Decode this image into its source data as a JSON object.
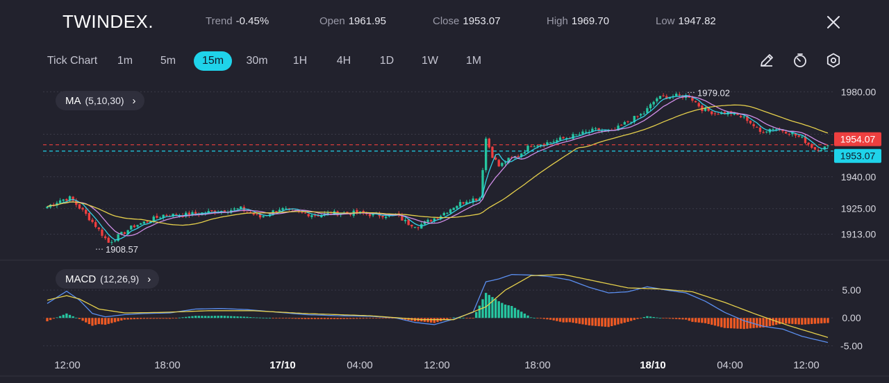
{
  "header": {
    "logo": "TWINDEX.",
    "stats": [
      {
        "label": "Trend",
        "value": "-0.45%"
      },
      {
        "label": "Open",
        "value": "1961.95"
      },
      {
        "label": "Close",
        "value": "1953.07"
      },
      {
        "label": "High",
        "value": "1969.70"
      },
      {
        "label": "Low",
        "value": "1947.82"
      }
    ],
    "close_icon": "close-icon"
  },
  "timeframes": {
    "items": [
      "Tick Chart",
      "1m",
      "5m",
      "15m",
      "30m",
      "1H",
      "4H",
      "1D",
      "1W",
      "1M"
    ],
    "active": "15m"
  },
  "tools": [
    "pencil-icon",
    "timer-icon",
    "settings-icon"
  ],
  "indicators": {
    "ma": {
      "label": "MA",
      "params": "(5,10,30)"
    },
    "macd": {
      "label": "MACD",
      "params": "(12,26,9)"
    }
  },
  "colors": {
    "up": "#26c6a0",
    "down": "#ee3f3f",
    "ma5": "#36d1e6",
    "ma10": "#d08ee8",
    "ma30": "#e6d04c",
    "macd_line": "#5b8ff0",
    "signal_line": "#e6d04c",
    "hist_pos": "#26c6a0",
    "hist_neg": "#ee5a24",
    "open_marker": "#ee3f3f",
    "close_marker": "#1fd3ea"
  },
  "chart_data": {
    "type": "candlestick",
    "x_ticks": [
      "12:00",
      "18:00",
      "17/10",
      "04:00",
      "12:00",
      "18:00",
      "18/10",
      "04:00",
      "12:00"
    ],
    "x_tick_bold": [
      "17/10",
      "18/10"
    ],
    "price_axis": {
      "ticks": [
        "1980.00",
        "1940.00",
        "1925.00",
        "1913.00"
      ],
      "ylim": [
        1905,
        1984
      ]
    },
    "open_marker": "1954.07",
    "close_marker": "1953.07",
    "annotations": [
      {
        "text": "1979.02",
        "value": 1979.02,
        "kind": "high"
      },
      {
        "text": "1908.57",
        "value": 1908.57,
        "kind": "low"
      }
    ],
    "price_anchors": [
      [
        0,
        1926
      ],
      [
        4,
        1929
      ],
      [
        7,
        1930
      ],
      [
        11,
        1924
      ],
      [
        15,
        1917
      ],
      [
        19,
        1909
      ],
      [
        23,
        1913
      ],
      [
        27,
        1917
      ],
      [
        31,
        1919
      ],
      [
        36,
        1922
      ],
      [
        42,
        1922
      ],
      [
        48,
        1923
      ],
      [
        54,
        1924
      ],
      [
        60,
        1925
      ],
      [
        66,
        1921
      ],
      [
        72,
        1925
      ],
      [
        78,
        1923
      ],
      [
        84,
        1922
      ],
      [
        90,
        1923
      ],
      [
        96,
        1923
      ],
      [
        102,
        1922
      ],
      [
        108,
        1922
      ],
      [
        112,
        1918
      ],
      [
        115,
        1917
      ],
      [
        118,
        1919
      ],
      [
        122,
        1922
      ],
      [
        126,
        1926
      ],
      [
        130,
        1929
      ],
      [
        134,
        1930
      ],
      [
        136,
        1958
      ],
      [
        138,
        1950
      ],
      [
        140,
        1945
      ],
      [
        143,
        1948
      ],
      [
        146,
        1950
      ],
      [
        150,
        1955
      ],
      [
        155,
        1956
      ],
      [
        160,
        1958
      ],
      [
        165,
        1960
      ],
      [
        170,
        1962
      ],
      [
        175,
        1961
      ],
      [
        180,
        1966
      ],
      [
        185,
        1970
      ],
      [
        189,
        1977
      ],
      [
        194,
        1978
      ],
      [
        199,
        1978
      ],
      [
        203,
        1972
      ],
      [
        207,
        1970
      ],
      [
        212,
        1970
      ],
      [
        217,
        1967
      ],
      [
        221,
        1961
      ],
      [
        225,
        1963
      ],
      [
        230,
        1961
      ],
      [
        234,
        1958
      ],
      [
        238,
        1953
      ],
      [
        242,
        1954
      ]
    ],
    "macd_axis": {
      "ticks": [
        "5.00",
        "0.00",
        "-5.00"
      ],
      "ylim": [
        -5.2,
        8.5
      ]
    },
    "macd_anchors": [
      [
        0,
        2.6
      ],
      [
        6,
        4.8
      ],
      [
        10,
        3.2
      ],
      [
        14,
        0.8
      ],
      [
        18,
        0.2
      ],
      [
        24,
        0.6
      ],
      [
        30,
        0.8
      ],
      [
        38,
        0.9
      ],
      [
        46,
        1.6
      ],
      [
        54,
        1.7
      ],
      [
        62,
        1.5
      ],
      [
        70,
        1.1
      ],
      [
        80,
        0.6
      ],
      [
        90,
        0.4
      ],
      [
        100,
        0.3
      ],
      [
        108,
        0.0
      ],
      [
        114,
        -0.8
      ],
      [
        120,
        -1.2
      ],
      [
        126,
        -0.2
      ],
      [
        132,
        1.0
      ],
      [
        136,
        6.5
      ],
      [
        140,
        7.0
      ],
      [
        144,
        7.8
      ],
      [
        150,
        7.7
      ],
      [
        156,
        7.4
      ],
      [
        162,
        6.8
      ],
      [
        168,
        5.5
      ],
      [
        174,
        4.5
      ],
      [
        180,
        4.7
      ],
      [
        186,
        5.6
      ],
      [
        192,
        5.0
      ],
      [
        198,
        4.5
      ],
      [
        204,
        3.0
      ],
      [
        210,
        1.0
      ],
      [
        216,
        -0.5
      ],
      [
        222,
        -1.5
      ],
      [
        228,
        -2.0
      ],
      [
        234,
        -3.3
      ],
      [
        242,
        -4.4
      ]
    ],
    "macd_signal_anchors": [
      [
        0,
        3.2
      ],
      [
        6,
        4.0
      ],
      [
        10,
        3.4
      ],
      [
        16,
        1.6
      ],
      [
        24,
        0.9
      ],
      [
        36,
        1.0
      ],
      [
        50,
        1.3
      ],
      [
        64,
        1.3
      ],
      [
        80,
        0.8
      ],
      [
        100,
        0.4
      ],
      [
        116,
        -0.3
      ],
      [
        126,
        -0.3
      ],
      [
        136,
        2.0
      ],
      [
        142,
        5.0
      ],
      [
        150,
        7.6
      ],
      [
        160,
        7.8
      ],
      [
        170,
        6.6
      ],
      [
        180,
        5.4
      ],
      [
        190,
        5.2
      ],
      [
        200,
        4.7
      ],
      [
        210,
        2.8
      ],
      [
        220,
        0.6
      ],
      [
        230,
        -1.4
      ],
      [
        242,
        -3.5
      ]
    ]
  }
}
